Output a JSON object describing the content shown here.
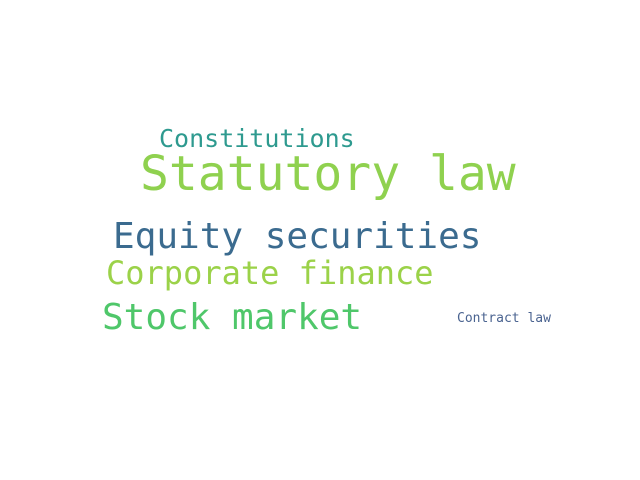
{
  "words": [
    {
      "text": "Constitutions",
      "color": "#2e9a8f"
    },
    {
      "text": "Statutory law",
      "color": "#8fd14f"
    },
    {
      "text": "Equity securities",
      "color": "#3b6b8f"
    },
    {
      "text": "Corporate finance",
      "color": "#9bd249"
    },
    {
      "text": "Stock market",
      "color": "#4fc76a"
    },
    {
      "text": "Contract law",
      "color": "#4a6390"
    }
  ]
}
